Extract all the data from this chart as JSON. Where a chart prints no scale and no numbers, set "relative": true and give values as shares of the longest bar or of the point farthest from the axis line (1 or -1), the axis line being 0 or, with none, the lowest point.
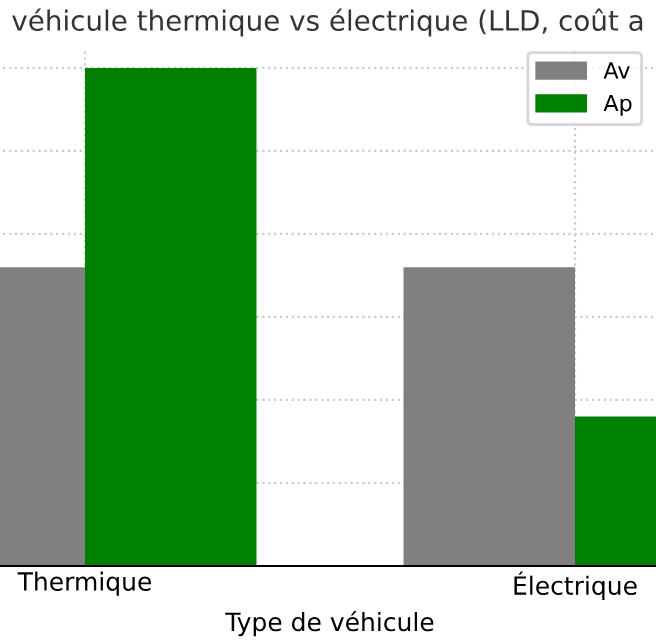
{
  "chart_data": {
    "type": "bar",
    "title": "véhicule thermique vs électrique (LLD, coût a",
    "xlabel": "Type de véhicule",
    "categories": [
      "Thermique",
      "Électrique"
    ],
    "relative": true,
    "grid": true,
    "legend": "top right",
    "series": [
      {
        "name": "Av",
        "color": "#808080",
        "values": [
          0.6,
          0.6
        ]
      },
      {
        "name": "Ap",
        "color": "#008000",
        "values": [
          1,
          0.3
        ]
      }
    ]
  }
}
